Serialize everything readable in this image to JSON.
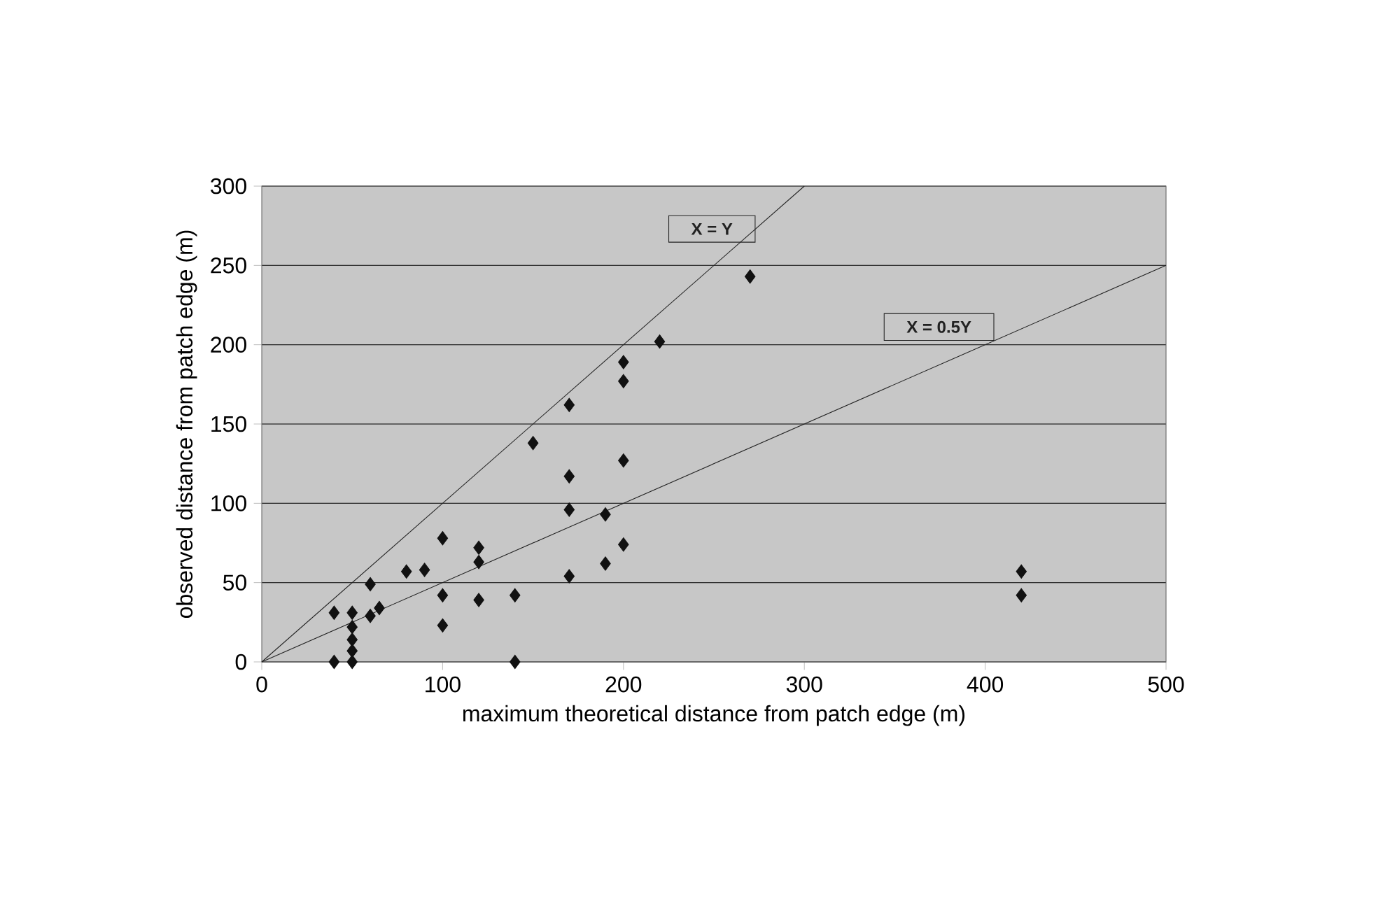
{
  "chart_data": {
    "type": "scatter",
    "xlabel": "maximum theoretical distance from patch edge (m)",
    "ylabel": "observed distance from patch edge (m)",
    "xlim": [
      0,
      500
    ],
    "ylim": [
      0,
      300
    ],
    "xticks": [
      0,
      100,
      200,
      300,
      400,
      500
    ],
    "yticks": [
      0,
      50,
      100,
      150,
      200,
      250,
      300
    ],
    "grid": "y",
    "series": [
      {
        "marker": "diamond",
        "color": "#111111",
        "x": [
          40,
          50,
          50,
          50,
          50,
          40,
          50,
          60,
          60,
          65,
          80,
          90,
          100,
          100,
          100,
          120,
          120,
          120,
          140,
          140,
          150,
          170,
          170,
          170,
          170,
          190,
          190,
          200,
          200,
          200,
          200,
          220,
          270,
          420,
          420
        ],
        "values": [
          31,
          31,
          22,
          14,
          7,
          0,
          0,
          49,
          29,
          34,
          57,
          58,
          78,
          42,
          23,
          72,
          63,
          39,
          42,
          0,
          138,
          162,
          117,
          96,
          54,
          93,
          62,
          189,
          177,
          127,
          74,
          202,
          243,
          57,
          42
        ]
      },
      {
        "type": "line",
        "marker": "none",
        "name": "X = Y",
        "color": "#222222",
        "x": [
          0,
          300
        ],
        "values": [
          0,
          300
        ]
      },
      {
        "type": "line",
        "marker": "none",
        "name": "X = 0.5Y",
        "color": "#222222",
        "x": [
          0,
          500
        ],
        "values": [
          0,
          250
        ]
      }
    ]
  }
}
